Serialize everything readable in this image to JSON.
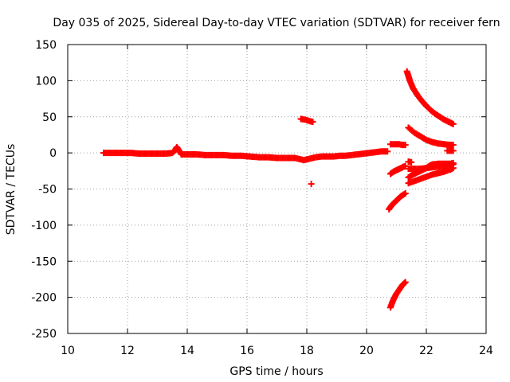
{
  "chart_data": {
    "type": "scatter",
    "title": "Day 035 of 2025, Sidereal Day-to-day VTEC variation (SDTVAR) for receiver fern",
    "xlabel": "GPS time / hours",
    "ylabel": "SDTVAR / TECUs",
    "xlim": [
      10,
      24
    ],
    "ylim": [
      -250,
      150
    ],
    "x_ticks": [
      10,
      12,
      14,
      16,
      18,
      20,
      22,
      24
    ],
    "y_ticks": [
      -250,
      -200,
      -150,
      -100,
      -50,
      0,
      50,
      100,
      150
    ],
    "grid": true,
    "legend": "none",
    "marker": "plus",
    "color": "#ff0000",
    "series": [
      {
        "x": [
          11.2,
          11.5,
          11.8,
          12.1,
          12.4,
          12.7,
          13.0,
          13.3,
          13.5,
          13.6,
          13.65,
          13.7,
          13.8,
          14.0,
          14.3,
          14.6,
          14.9,
          15.2,
          15.5,
          15.8,
          16.1,
          16.4,
          16.7,
          17.0,
          17.3,
          17.6,
          17.8,
          17.9,
          18.0,
          18.1,
          18.3,
          18.5,
          18.7,
          18.9,
          19.1,
          19.3,
          19.5,
          19.7,
          19.9,
          20.1,
          20.3,
          20.5,
          20.7
        ],
        "y": [
          0,
          0,
          0,
          0,
          -1,
          -1,
          -1,
          -1,
          0,
          4,
          8,
          5,
          -2,
          -2,
          -2,
          -3,
          -3,
          -3,
          -4,
          -4,
          -5,
          -6,
          -6,
          -7,
          -7,
          -7,
          -9,
          -10,
          -9,
          -8,
          -6,
          -5,
          -5,
          -5,
          -4,
          -4,
          -3,
          -2,
          -1,
          0,
          1,
          2,
          2
        ]
      },
      {
        "x": [
          17.8,
          17.95,
          18.1,
          18.2
        ],
        "y": [
          47,
          46,
          44,
          43
        ]
      },
      {
        "x": [
          18.15
        ],
        "y": [
          -43
        ]
      },
      {
        "x": [
          20.8,
          20.9,
          21.0,
          21.1,
          21.2,
          21.3
        ],
        "y": [
          12,
          12,
          12,
          12,
          11,
          11
        ]
      },
      {
        "x": [
          20.8,
          20.9,
          21.0,
          21.1,
          21.2,
          21.3
        ],
        "y": [
          -29,
          -26,
          -24,
          -22,
          -20,
          -18
        ]
      },
      {
        "x": [
          20.75,
          20.85,
          20.95,
          21.05,
          21.15,
          21.3
        ],
        "y": [
          -78,
          -72,
          -68,
          -64,
          -60,
          -56
        ]
      },
      {
        "x": [
          20.8,
          20.85,
          20.9,
          20.95,
          21.0,
          21.05,
          21.1,
          21.15,
          21.2,
          21.25,
          21.3
        ],
        "y": [
          -214,
          -208,
          -203,
          -199,
          -195,
          -192,
          -189,
          -186,
          -183,
          -181,
          -179
        ]
      },
      {
        "x": [
          21.35,
          21.45,
          21.55,
          21.7,
          21.85,
          22.0,
          22.15,
          22.3,
          22.45,
          22.6,
          22.75,
          22.9
        ],
        "y": [
          113,
          100,
          90,
          80,
          72,
          65,
          59,
          54,
          50,
          46,
          43,
          40
        ]
      },
      {
        "x": [
          21.4,
          21.6,
          21.8,
          22.0,
          22.2,
          22.4,
          22.6,
          22.8,
          22.9
        ],
        "y": [
          35,
          28,
          23,
          18,
          15,
          13,
          12,
          11,
          11
        ]
      },
      {
        "x": [
          21.4,
          21.5
        ],
        "y": [
          -12,
          -13
        ]
      },
      {
        "x": [
          21.4,
          21.6,
          21.8,
          22.0,
          22.2,
          22.4,
          22.6,
          22.8,
          22.9
        ],
        "y": [
          -22,
          -22,
          -22,
          -21,
          -20,
          -19,
          -18,
          -17,
          -16
        ]
      },
      {
        "x": [
          21.4,
          21.55,
          21.7,
          21.85,
          22.0,
          22.1,
          22.2,
          22.4,
          22.6,
          22.8,
          22.9
        ],
        "y": [
          -34,
          -30,
          -27,
          -24,
          -21,
          -18,
          -16,
          -15,
          -15,
          -15,
          -14
        ]
      },
      {
        "x": [
          21.4,
          21.6,
          21.8,
          22.0,
          22.2,
          22.4,
          22.6,
          22.8,
          22.9
        ],
        "y": [
          -42,
          -39,
          -36,
          -33,
          -30,
          -28,
          -26,
          -23,
          -21
        ]
      },
      {
        "x": [
          22.7,
          22.8,
          22.9
        ],
        "y": [
          3,
          3,
          3
        ]
      }
    ]
  }
}
